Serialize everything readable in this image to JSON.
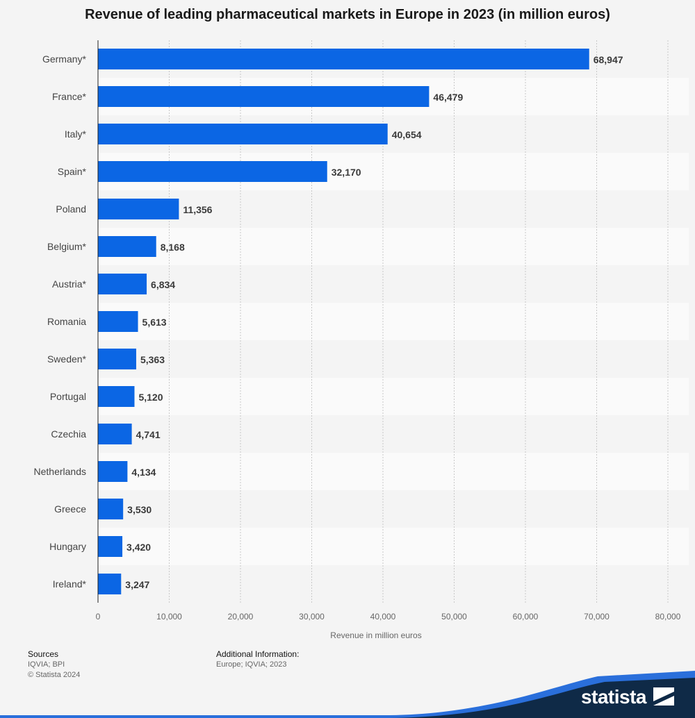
{
  "chart_data": {
    "type": "bar",
    "orientation": "horizontal",
    "title": "Revenue of leading pharmaceutical markets in Europe in 2023 (in million euros)",
    "xlabel": "Revenue in million euros",
    "ylabel": "",
    "xlim": [
      0,
      80000
    ],
    "ticks": [
      0,
      10000,
      20000,
      30000,
      40000,
      50000,
      60000,
      70000,
      80000
    ],
    "tick_labels": [
      "0",
      "10,000",
      "20,000",
      "30,000",
      "40,000",
      "50,000",
      "60,000",
      "70,000",
      "80,000"
    ],
    "grid": true,
    "categories": [
      "Germany*",
      "France*",
      "Italy*",
      "Spain*",
      "Poland",
      "Belgium*",
      "Austria*",
      "Romania",
      "Sweden*",
      "Portugal",
      "Czechia",
      "Netherlands",
      "Greece",
      "Hungary",
      "Ireland*"
    ],
    "values": [
      68947,
      46479,
      40654,
      32170,
      11356,
      8168,
      6834,
      5613,
      5363,
      5120,
      4741,
      4134,
      3530,
      3420,
      3247
    ],
    "value_labels": [
      "68,947",
      "46,479",
      "40,654",
      "32,170",
      "11,356",
      "8,168",
      "6,834",
      "5,613",
      "5,363",
      "5,120",
      "4,741",
      "4,134",
      "3,530",
      "3,420",
      "3,247"
    ],
    "bar_color": "#0b66e4"
  },
  "footer": {
    "sources_label": "Sources",
    "sources_text": "IQVIA; BPI",
    "copyright": "© Statista 2024",
    "additional_label": "Additional Information:",
    "additional_text": "Europe; IQVIA; 2023"
  },
  "brand": {
    "name": "statista",
    "icon": "statista-logo-icon",
    "band_color": "#0f2a47",
    "accent_color": "#2a6fdb"
  }
}
